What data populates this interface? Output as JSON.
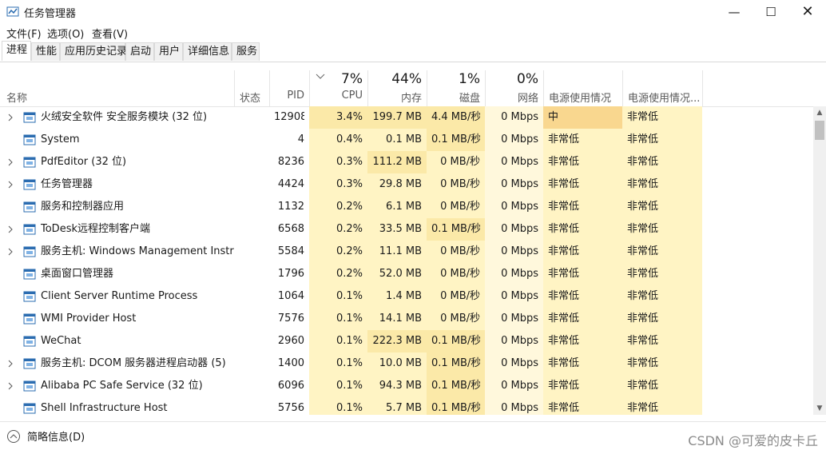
{
  "window": {
    "title": "任务管理器"
  },
  "menu": [
    "文件(F)",
    "选项(O)",
    "查看(V)"
  ],
  "tabs": [
    "进程",
    "性能",
    "应用历史记录",
    "启动",
    "用户",
    "详细信息",
    "服务"
  ],
  "active_tab": 0,
  "columns": [
    {
      "key": "name",
      "label": "名称"
    },
    {
      "key": "status",
      "label": "状态"
    },
    {
      "key": "pid",
      "label": "PID"
    },
    {
      "key": "cpu",
      "usage": "7%",
      "label": "CPU"
    },
    {
      "key": "memory",
      "usage": "44%",
      "label": "内存"
    },
    {
      "key": "disk",
      "usage": "1%",
      "label": "磁盘"
    },
    {
      "key": "network",
      "usage": "0%",
      "label": "网络"
    },
    {
      "key": "power",
      "label": "电源使用情况"
    },
    {
      "key": "power_trend",
      "label": "电源使用情况..."
    }
  ],
  "rows": [
    {
      "expandable": true,
      "highlight": [
        "cpu",
        "memory",
        "disk",
        "power"
      ],
      "name": "火绒安全软件 安全服务模块 (32 位)",
      "pid": "12908",
      "cpu": "3.4%",
      "memory": "199.7 MB",
      "disk": "4.4 MB/秒",
      "network": "0 Mbps",
      "power": "中",
      "power_trend": "非常低"
    },
    {
      "expandable": false,
      "highlight": [
        "disk"
      ],
      "name": "System",
      "pid": "4",
      "cpu": "0.4%",
      "memory": "0.1 MB",
      "disk": "0.1 MB/秒",
      "network": "0 Mbps",
      "power": "非常低",
      "power_trend": "非常低"
    },
    {
      "expandable": true,
      "highlight": [
        "memory"
      ],
      "name": "PdfEditor (32 位)",
      "pid": "8236",
      "cpu": "0.3%",
      "memory": "111.2 MB",
      "disk": "0 MB/秒",
      "network": "0 Mbps",
      "power": "非常低",
      "power_trend": "非常低"
    },
    {
      "expandable": true,
      "highlight": [],
      "name": "任务管理器",
      "pid": "4424",
      "cpu": "0.3%",
      "memory": "29.8 MB",
      "disk": "0 MB/秒",
      "network": "0 Mbps",
      "power": "非常低",
      "power_trend": "非常低"
    },
    {
      "expandable": false,
      "highlight": [],
      "name": "服务和控制器应用",
      "pid": "1132",
      "cpu": "0.2%",
      "memory": "6.1 MB",
      "disk": "0 MB/秒",
      "network": "0 Mbps",
      "power": "非常低",
      "power_trend": "非常低"
    },
    {
      "expandable": true,
      "highlight": [
        "disk"
      ],
      "name": "ToDesk远程控制客户端",
      "pid": "6568",
      "cpu": "0.2%",
      "memory": "33.5 MB",
      "disk": "0.1 MB/秒",
      "network": "0 Mbps",
      "power": "非常低",
      "power_trend": "非常低"
    },
    {
      "expandable": true,
      "highlight": [],
      "name": "服务主机: Windows Management Instru...",
      "pid": "5584",
      "cpu": "0.2%",
      "memory": "11.1 MB",
      "disk": "0 MB/秒",
      "network": "0 Mbps",
      "power": "非常低",
      "power_trend": "非常低"
    },
    {
      "expandable": false,
      "highlight": [],
      "name": "桌面窗口管理器",
      "pid": "1796",
      "cpu": "0.2%",
      "memory": "52.0 MB",
      "disk": "0 MB/秒",
      "network": "0 Mbps",
      "power": "非常低",
      "power_trend": "非常低"
    },
    {
      "expandable": false,
      "highlight": [],
      "name": "Client Server Runtime Process",
      "pid": "1064",
      "cpu": "0.1%",
      "memory": "1.4 MB",
      "disk": "0 MB/秒",
      "network": "0 Mbps",
      "power": "非常低",
      "power_trend": "非常低"
    },
    {
      "expandable": false,
      "highlight": [],
      "name": "WMI Provider Host",
      "pid": "7576",
      "cpu": "0.1%",
      "memory": "14.1 MB",
      "disk": "0 MB/秒",
      "network": "0 Mbps",
      "power": "非常低",
      "power_trend": "非常低"
    },
    {
      "expandable": false,
      "highlight": [
        "memory",
        "disk"
      ],
      "name": "WeChat",
      "pid": "2960",
      "cpu": "0.1%",
      "memory": "222.3 MB",
      "disk": "0.1 MB/秒",
      "network": "0 Mbps",
      "power": "非常低",
      "power_trend": "非常低"
    },
    {
      "expandable": true,
      "highlight": [
        "disk"
      ],
      "name": "服务主机: DCOM 服务器进程启动器 (5)",
      "pid": "1400",
      "cpu": "0.1%",
      "memory": "10.0 MB",
      "disk": "0.1 MB/秒",
      "network": "0 Mbps",
      "power": "非常低",
      "power_trend": "非常低"
    },
    {
      "expandable": true,
      "highlight": [
        "disk"
      ],
      "name": "Alibaba PC Safe Service (32 位)",
      "pid": "6096",
      "cpu": "0.1%",
      "memory": "94.3 MB",
      "disk": "0.1 MB/秒",
      "network": "0 Mbps",
      "power": "非常低",
      "power_trend": "非常低"
    },
    {
      "expandable": false,
      "highlight": [
        "disk"
      ],
      "name": "Shell Infrastructure Host",
      "pid": "5756",
      "cpu": "0.1%",
      "memory": "5.7 MB",
      "disk": "0.1 MB/秒",
      "network": "0 Mbps",
      "power": "非常低",
      "power_trend": "非常低"
    }
  ],
  "footer": {
    "label": "简略信息(D)"
  },
  "watermark": "CSDN @可爱的皮卡丘"
}
